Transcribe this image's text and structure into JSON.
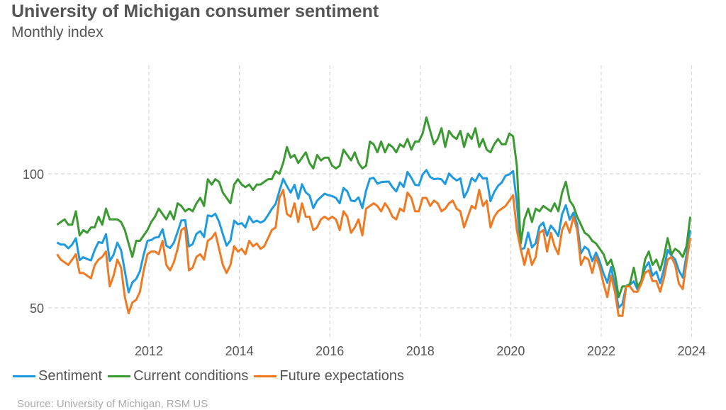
{
  "chart_data": {
    "type": "line",
    "title": "University of Michigan consumer sentiment",
    "subtitle": "Monthly index",
    "source": "Source: University of Michigan, RSM US",
    "x_start": "2010-01",
    "x_end": "2024-01",
    "frequency": "monthly",
    "x_ticks": [
      "2012",
      "2014",
      "2016",
      "2018",
      "2020",
      "2022",
      "2024"
    ],
    "y_ticks": [
      100,
      50
    ],
    "ylim": [
      40,
      125
    ],
    "grid": true,
    "legend_position": "bottom",
    "series": [
      {
        "name": "Sentiment",
        "color": "#1e9ae0",
        "values": [
          74.4,
          73.6,
          73.6,
          72.2,
          73.6,
          76.0,
          67.8,
          68.9,
          68.2,
          67.7,
          71.6,
          74.5,
          74.2,
          77.5,
          67.5,
          69.8,
          74.3,
          71.5,
          63.7,
          55.8,
          59.5,
          60.8,
          63.7,
          69.9,
          75.0,
          75.3,
          76.2,
          76.4,
          79.3,
          73.2,
          72.3,
          74.3,
          78.3,
          82.6,
          82.7,
          72.9,
          73.8,
          77.6,
          78.6,
          76.4,
          84.5,
          84.1,
          85.1,
          82.1,
          77.5,
          73.2,
          75.1,
          82.5,
          81.2,
          81.6,
          80.0,
          84.1,
          81.9,
          82.5,
          81.8,
          82.5,
          84.6,
          86.9,
          88.8,
          93.6,
          98.1,
          95.4,
          93.0,
          95.9,
          90.7,
          96.1,
          93.1,
          91.9,
          87.2,
          90.0,
          91.3,
          92.6,
          92.0,
          91.7,
          91.0,
          89.0,
          94.7,
          93.5,
          90.0,
          89.8,
          91.2,
          87.2,
          93.8,
          98.2,
          98.5,
          96.3,
          96.9,
          97.0,
          97.1,
          95.0,
          93.4,
          96.8,
          95.1,
          100.7,
          98.5,
          95.9,
          95.7,
          99.7,
          101.4,
          98.8,
          98.0,
          98.2,
          97.9,
          96.2,
          100.1,
          98.6,
          97.5,
          98.3,
          91.2,
          93.8,
          98.4,
          97.2,
          100.0,
          98.2,
          98.4,
          89.8,
          93.2,
          95.5,
          96.8,
          99.3,
          99.8,
          101.0,
          89.1,
          71.8,
          72.3,
          78.1,
          72.5,
          74.1,
          80.4,
          81.8,
          76.9,
          80.7,
          79.0,
          76.8,
          84.9,
          88.3,
          82.9,
          85.5,
          81.2,
          70.3,
          72.8,
          71.7,
          67.4,
          70.6,
          67.2,
          62.8,
          59.4,
          65.2,
          58.4,
          50.0,
          51.5,
          58.2,
          58.6,
          59.9,
          56.8,
          59.7,
          64.9,
          67.0,
          62.0,
          63.5,
          59.2,
          64.4,
          71.6,
          69.5,
          68.1,
          63.8,
          61.3,
          69.7,
          79.0
        ]
      },
      {
        "name": "Current conditions",
        "color": "#3c9a32",
        "values": [
          81,
          82,
          83,
          81,
          81,
          86,
          77,
          79,
          78,
          80,
          80,
          84,
          81,
          87,
          83,
          83,
          83,
          82,
          79,
          74,
          69,
          75,
          75,
          77,
          79,
          82,
          84,
          87,
          85,
          83,
          86,
          83,
          89,
          88,
          86,
          87,
          86,
          89,
          91,
          88,
          98,
          96,
          98,
          97,
          93,
          91,
          89,
          96,
          98,
          96,
          95,
          96,
          94,
          96,
          96,
          97,
          98,
          98,
          101,
          100,
          104,
          110,
          106,
          107,
          104,
          106,
          108,
          104,
          102,
          107,
          105,
          106,
          106,
          103,
          102,
          103,
          109,
          107,
          105,
          108,
          104,
          102,
          103,
          112,
          111,
          108,
          112,
          108,
          111,
          110,
          108,
          111,
          110,
          113,
          109,
          112,
          112,
          115,
          121,
          116,
          111,
          113,
          117,
          110,
          116,
          114,
          113,
          116,
          110,
          115,
          113,
          117,
          110,
          113,
          109,
          108,
          111,
          113,
          111,
          111,
          115,
          114,
          103,
          74,
          83,
          87,
          82,
          87,
          86,
          88,
          87,
          86,
          89,
          86,
          93,
          97,
          90,
          88,
          84,
          81,
          78,
          77,
          75,
          74,
          72,
          70,
          66,
          68,
          63,
          54,
          58,
          58,
          59,
          65,
          58,
          60,
          68,
          71,
          66,
          68,
          64,
          69,
          76,
          70,
          72,
          71,
          69,
          73,
          84
        ]
      },
      {
        "name": "Future expectations",
        "color": "#ef7a22",
        "values": [
          70,
          68,
          67,
          66,
          68,
          70,
          63,
          63,
          62,
          61,
          66,
          68,
          69,
          71,
          58,
          62,
          68,
          65,
          54,
          48,
          52,
          53,
          56,
          64,
          70,
          71,
          71,
          70,
          75,
          66,
          64,
          67,
          72,
          79,
          80,
          64,
          65,
          69,
          70,
          68,
          75,
          76,
          78,
          72,
          66,
          63,
          66,
          73,
          71,
          72,
          70,
          75,
          73,
          74,
          72,
          73,
          76,
          79,
          80,
          91,
          94,
          85,
          84,
          89,
          82,
          89,
          84,
          84,
          79,
          80,
          83,
          84,
          83,
          84,
          83,
          79,
          86,
          84,
          78,
          80,
          83,
          77,
          87,
          88,
          89,
          88,
          86,
          89,
          87,
          84,
          83,
          87,
          86,
          93,
          91,
          86,
          86,
          91,
          91,
          88,
          90,
          89,
          86,
          87,
          89,
          90,
          87,
          86,
          80,
          84,
          88,
          87,
          94,
          88,
          90,
          80,
          84,
          86,
          87,
          88,
          90,
          92,
          79,
          72,
          66,
          72,
          66,
          69,
          78,
          79,
          71,
          78,
          73,
          70,
          79,
          82,
          78,
          84,
          79,
          66,
          69,
          68,
          63,
          69,
          65,
          59,
          54,
          62,
          56,
          47,
          47,
          58,
          58,
          56,
          56,
          59,
          63,
          64,
          60,
          60,
          56,
          61,
          68,
          69,
          66,
          59,
          57,
          67,
          76
        ]
      }
    ]
  }
}
